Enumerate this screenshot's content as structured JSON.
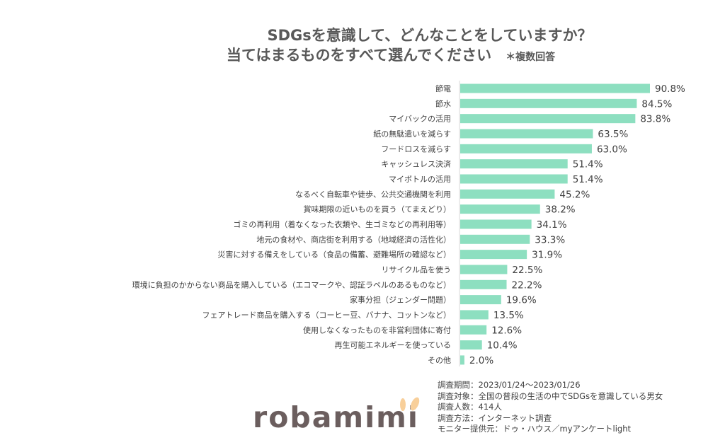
{
  "chart_data": {
    "type": "bar",
    "orientation": "horizontal",
    "title": "SDGsを意識して、どんなことをしていますか？",
    "subtitle": "当てはまるものをすべて選んでください",
    "note": "＊複数回答",
    "categories": [
      "節電",
      "節水",
      "マイバックの活用",
      "紙の無駄遣いを減らす",
      "フードロスを減らす",
      "キャッシュレス決済",
      "マイボトルの活用",
      "なるべく自転車や徒歩、公共交通機関を利用",
      "賞味期限の近いものを買う（てまえどり）",
      "ゴミの再利用（着なくなった衣類や、生ゴミなどの再利用等）",
      "地元の食材や、商店街を利用する（地域経済の活性化）",
      "災害に対する備えをしている（食品の備蓄、避難場所の確認など）",
      "リサイクル品を使う",
      "環境に負担のかからない商品を購入している（エコマークや、認証ラベルのあるものなど）",
      "家事分担（ジェンダー問題）",
      "フェアトレード商品を購入する（コーヒー豆、バナナ、コットンなど）",
      "使用しなくなったものを非営利団体に寄付",
      "再生可能エネルギーを使っている",
      "その他"
    ],
    "values": [
      90.8,
      84.5,
      83.8,
      63.5,
      63.0,
      51.4,
      51.4,
      45.2,
      38.2,
      34.1,
      33.3,
      31.9,
      22.5,
      22.2,
      19.6,
      13.5,
      12.6,
      10.4,
      2.0
    ],
    "value_labels": [
      "90.8%",
      "84.5%",
      "83.8%",
      "63.5%",
      "63.0%",
      "51.4%",
      "51.4%",
      "45.2%",
      "38.2%",
      "34.1%",
      "33.3%",
      "31.9%",
      "22.5%",
      "22.2%",
      "19.6%",
      "13.5%",
      "12.6%",
      "10.4%",
      "2.0%"
    ],
    "xlim": [
      0,
      100
    ],
    "bar_color": "#8ddfc0",
    "grid": false,
    "legend": "none"
  },
  "footer": {
    "lines": [
      "調査期間：2023/01/24～2023/01/26",
      "調査対象：全国の普段の生活の中でSDGsを意識している男女",
      "調査人数：414人",
      "調査方法：インターネット調査",
      "モニター提供元：ドゥ・ハウス／myアンケートlight"
    ]
  },
  "logo": {
    "text": "robamimi",
    "ear_color": "#f8cf9a"
  }
}
